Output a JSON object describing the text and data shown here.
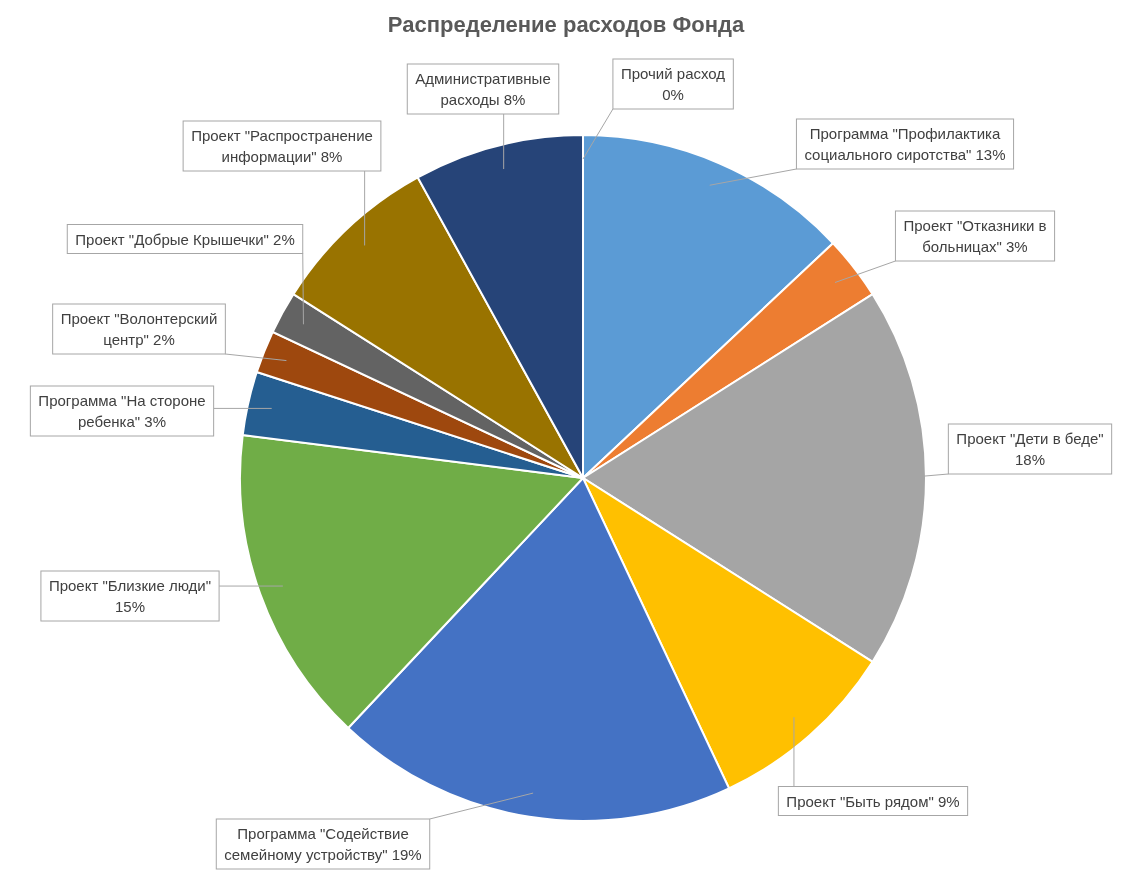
{
  "chart_data": {
    "type": "pie",
    "title": "Распределение расходов Фонда",
    "categories": [
      "Программа \"Профилактика социального сиротства\"",
      "Проект \"Отказники в больницах\"",
      "Проект \"Дети в беде\"",
      "Проект \"Быть рядом\"",
      "Программа \"Содействие семейному устройству\"",
      "Проект \"Близкие люди\"",
      "Программа \"На стороне ребенка\"",
      "Проект \"Волонтерский центр\"",
      "Проект \"Добрые Крышечки\"",
      "Проект \"Распространение информации\"",
      "Административные расходы",
      "Прочий расход"
    ],
    "values": [
      13,
      3,
      18,
      9,
      19,
      15,
      3,
      2,
      2,
      8,
      8,
      0
    ],
    "value_labels": [
      "13%",
      "3%",
      "18%",
      "9%",
      "19%",
      "15%",
      "3%",
      "2%",
      "2%",
      "8%",
      "8%",
      "0%"
    ],
    "colors": [
      "#5b9bd5",
      "#ed7d31",
      "#a5a5a5",
      "#ffc000",
      "#4472c4",
      "#70ad47",
      "#255e91",
      "#9e480e",
      "#636363",
      "#997300",
      "#264478",
      "#43682b"
    ]
  }
}
